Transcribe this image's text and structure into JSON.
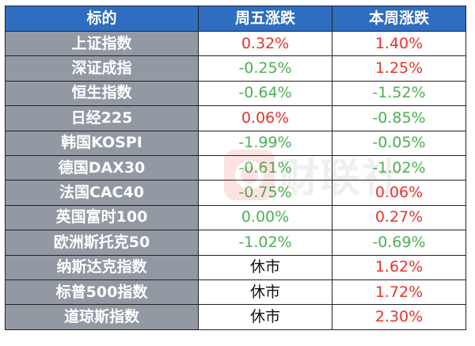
{
  "table": {
    "headers": [
      "标的",
      "周五涨跌",
      "本周涨跌"
    ],
    "rows": [
      {
        "name": "上证指数",
        "friday": "0.32%",
        "friday_dir": "up",
        "week": "1.40%",
        "week_dir": "up"
      },
      {
        "name": "深证成指",
        "friday": "-0.25%",
        "friday_dir": "down",
        "week": "1.25%",
        "week_dir": "up"
      },
      {
        "name": "恒生指数",
        "friday": "-0.64%",
        "friday_dir": "down",
        "week": "-1.52%",
        "week_dir": "down"
      },
      {
        "name": "日经225",
        "friday": "0.06%",
        "friday_dir": "up",
        "week": "-0.85%",
        "week_dir": "down"
      },
      {
        "name": "韩国KOSPI",
        "friday": "-1.99%",
        "friday_dir": "down",
        "week": "-0.05%",
        "week_dir": "down"
      },
      {
        "name": "德国DAX30",
        "friday": "-0.61%",
        "friday_dir": "down",
        "week": "-1.02%",
        "week_dir": "down"
      },
      {
        "name": "法国CAC40",
        "friday": "-0.75%",
        "friday_dir": "down",
        "week": "0.06%",
        "week_dir": "up"
      },
      {
        "name": "英国富时100",
        "friday": "0.00%",
        "friday_dir": "flat",
        "week": "0.27%",
        "week_dir": "up"
      },
      {
        "name": "欧洲斯托克50",
        "friday": "-1.02%",
        "friday_dir": "down",
        "week": "-0.69%",
        "week_dir": "down"
      },
      {
        "name": "纳斯达克指数",
        "friday": "休市",
        "friday_dir": "closed",
        "week": "1.62%",
        "week_dir": "up"
      },
      {
        "name": "标普500指数",
        "friday": "休市",
        "friday_dir": "closed",
        "week": "1.72%",
        "week_dir": "up"
      },
      {
        "name": "道琼斯指数",
        "friday": "休市",
        "friday_dir": "closed",
        "week": "2.30%",
        "week_dir": "up"
      }
    ]
  },
  "watermark": {
    "text": "财联社",
    "icon": "cls-logo-icon"
  },
  "colors": {
    "header_bg": "#2E6DBF",
    "label_bg": "#9399A3",
    "up": "#E8322D",
    "down": "#4CAF50",
    "closed": "#111111",
    "border": "#222222"
  }
}
